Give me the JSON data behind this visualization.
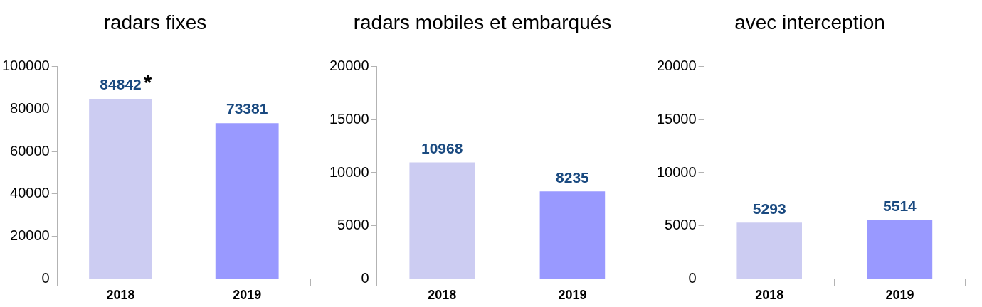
{
  "chart_data": [
    {
      "type": "bar",
      "title": "radars fixes",
      "categories": [
        "2018",
        "2019"
      ],
      "values": [
        84842,
        73381
      ],
      "colors": [
        "#ccccf2",
        "#9999ff"
      ],
      "ylim": [
        0,
        100000
      ],
      "yticks": [
        0,
        20000,
        40000,
        60000,
        80000,
        100000
      ],
      "data_labels": true,
      "grid": false,
      "legend": false,
      "annotations": [
        {
          "text": "*",
          "x": "2018",
          "y": 84842
        }
      ]
    },
    {
      "type": "bar",
      "title": "radars mobiles et embarqués",
      "categories": [
        "2018",
        "2019"
      ],
      "values": [
        10968,
        8235
      ],
      "colors": [
        "#ccccf2",
        "#9999ff"
      ],
      "ylim": [
        0,
        20000
      ],
      "yticks": [
        0,
        5000,
        10000,
        15000,
        20000
      ],
      "data_labels": true,
      "grid": false,
      "legend": false
    },
    {
      "type": "bar",
      "title": "avec interception",
      "categories": [
        "2018",
        "2019"
      ],
      "values": [
        5293,
        5514
      ],
      "colors": [
        "#ccccf2",
        "#9999ff"
      ],
      "ylim": [
        0,
        20000
      ],
      "yticks": [
        0,
        5000,
        10000,
        15000,
        20000
      ],
      "data_labels": true,
      "grid": false,
      "legend": false
    }
  ]
}
